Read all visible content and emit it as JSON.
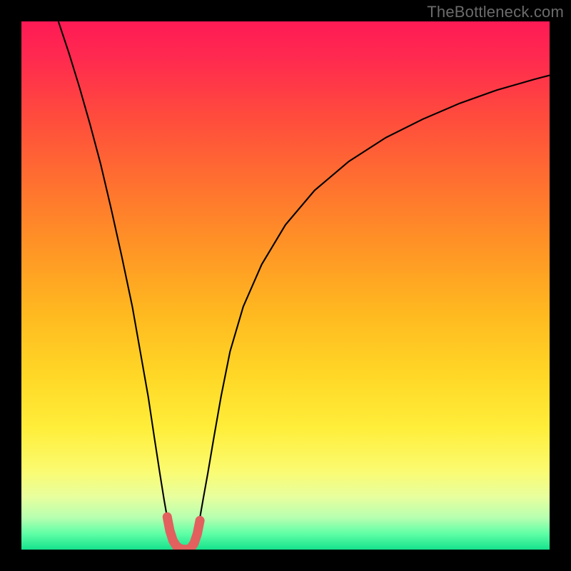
{
  "attribution": {
    "text": "TheBottleneck.com",
    "color": "#6b6b6b",
    "fontsize": 22
  },
  "frame": {
    "outer_size": 800,
    "border_width": 30,
    "border_color": "#000000",
    "inner_x": 30,
    "inner_y": 30,
    "inner_w": 740,
    "inner_h": 740
  },
  "chart": {
    "type": "line",
    "xlim": [
      0,
      1000
    ],
    "ylim": [
      0,
      1000
    ],
    "background_gradient": {
      "direction": "vertical",
      "stops": [
        [
          0.0,
          "#ff1a55"
        ],
        [
          0.07,
          "#ff2a4f"
        ],
        [
          0.18,
          "#ff4b3d"
        ],
        [
          0.3,
          "#ff6f30"
        ],
        [
          0.42,
          "#ff9226"
        ],
        [
          0.55,
          "#ffb820"
        ],
        [
          0.67,
          "#ffd726"
        ],
        [
          0.77,
          "#ffee3a"
        ],
        [
          0.85,
          "#fbfb70"
        ],
        [
          0.9,
          "#e8ff9e"
        ],
        [
          0.94,
          "#b6ffb0"
        ],
        [
          0.97,
          "#5fffa6"
        ],
        [
          1.0,
          "#16e18c"
        ]
      ]
    },
    "curve": {
      "stroke": "#000000",
      "stroke_width": 2.1,
      "points": [
        [
          70,
          1000
        ],
        [
          90,
          940
        ],
        [
          110,
          875
        ],
        [
          130,
          805
        ],
        [
          150,
          730
        ],
        [
          170,
          645
        ],
        [
          190,
          555
        ],
        [
          210,
          460
        ],
        [
          225,
          375
        ],
        [
          240,
          290
        ],
        [
          252,
          210
        ],
        [
          262,
          145
        ],
        [
          270,
          95
        ],
        [
          277,
          55
        ],
        [
          285,
          20
        ],
        [
          295,
          2
        ],
        [
          310,
          0
        ],
        [
          322,
          2
        ],
        [
          330,
          20
        ],
        [
          337,
          55
        ],
        [
          344,
          95
        ],
        [
          353,
          145
        ],
        [
          364,
          210
        ],
        [
          378,
          290
        ],
        [
          395,
          375
        ],
        [
          420,
          460
        ],
        [
          455,
          540
        ],
        [
          500,
          615
        ],
        [
          555,
          680
        ],
        [
          620,
          735
        ],
        [
          690,
          780
        ],
        [
          760,
          815
        ],
        [
          830,
          845
        ],
        [
          900,
          870
        ],
        [
          970,
          890
        ],
        [
          1000,
          898
        ]
      ]
    },
    "marker_run": {
      "stroke": "#e2605e",
      "stroke_width": 13,
      "cap": "round",
      "join": "round",
      "points": [
        [
          276,
          62
        ],
        [
          281,
          36
        ],
        [
          287,
          17
        ],
        [
          294,
          6
        ],
        [
          302,
          1
        ],
        [
          312,
          0
        ],
        [
          320,
          2
        ],
        [
          327,
          12
        ],
        [
          333,
          30
        ],
        [
          338,
          55
        ]
      ]
    }
  }
}
